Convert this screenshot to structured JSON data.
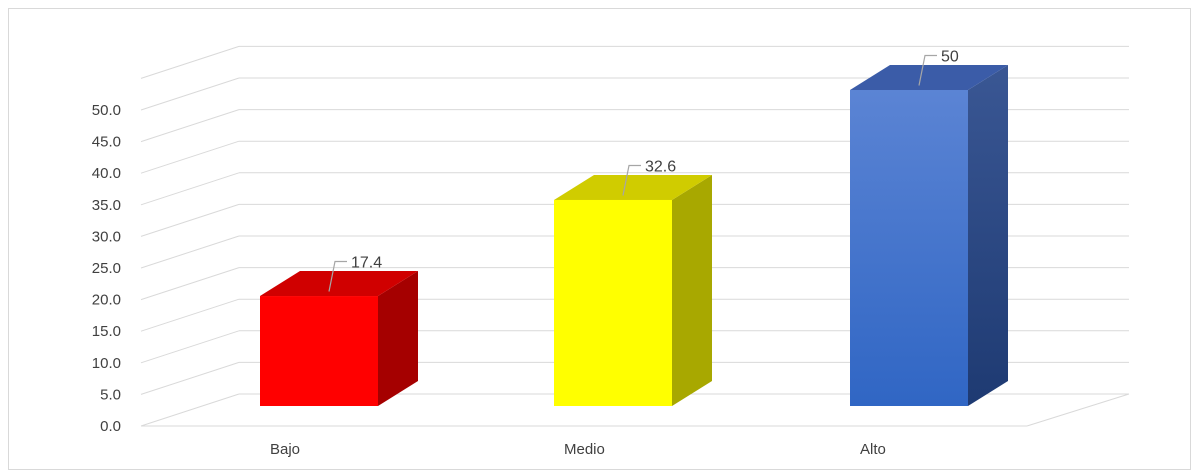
{
  "chart_data": {
    "type": "bar",
    "style": "3d-column",
    "categories": [
      "Bajo",
      "Medio",
      "Alto"
    ],
    "values": [
      17.4,
      32.6,
      50
    ],
    "data_labels": [
      "17.4",
      "32.6",
      "50"
    ],
    "ylim": [
      0,
      50
    ],
    "y_ticks": [
      "0.0",
      "5.0",
      "10.0",
      "15.0",
      "20.0",
      "25.0",
      "30.0",
      "35.0",
      "40.0",
      "45.0",
      "50.0"
    ],
    "grid": true,
    "legend": "none",
    "title": "",
    "xlabel": "",
    "ylabel": "",
    "colors": {
      "bars": [
        {
          "front": "#ff0000",
          "side": "#a50000",
          "top": "#d00000"
        },
        {
          "front": "#ffff00",
          "side": "#a8a800",
          "top": "#d0cc00"
        },
        {
          "front": "#4472c4",
          "side": "#2a4a86",
          "top": "#3b5ca8"
        }
      ],
      "grid": "#d9d9d9",
      "text": "#404040"
    }
  }
}
